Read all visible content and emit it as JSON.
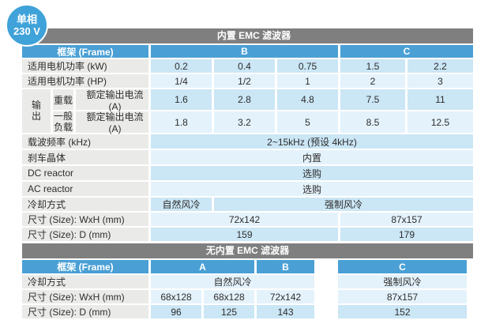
{
  "badge": {
    "line1": "单相",
    "line2": "230 V"
  },
  "colors": {
    "badge_bg": "#3fa2d9",
    "section_header_bg": "#7f7f7f",
    "table_header_bg": "#4aa0d5",
    "label_cell_bg": "#eaeae8",
    "row_blue": "#cbe6f5",
    "row_blue_light": "#e4f2fb"
  },
  "section1": {
    "title": "内置 EMC 滤波器",
    "frame": {
      "label": "框架 (Frame)",
      "col_b": "B",
      "col_c": "C"
    },
    "power_kw": {
      "label": "适用电机功率 (kW)",
      "values": [
        "0.2",
        "0.4",
        "0.75",
        "1.5",
        "2.2"
      ]
    },
    "power_hp": {
      "label": "适用电机功率 (HP)",
      "values": [
        "1/4",
        "1/2",
        "1",
        "2",
        "3"
      ]
    },
    "output": {
      "label": "输\n出",
      "heavy": {
        "label": "重载",
        "sub": "额定输出电流 (A)",
        "values": [
          "1.6",
          "2.8",
          "4.8",
          "7.5",
          "11"
        ]
      },
      "normal": {
        "label": "一般\n负载",
        "sub": "额定输出电流 (A)",
        "values": [
          "1.8",
          "3.2",
          "5",
          "8.5",
          "12.5"
        ]
      }
    },
    "carrier": {
      "label": "载波频率 (kHz)",
      "value": "2~15kHz (预设 4kHz)"
    },
    "brake": {
      "label": "刹车晶体",
      "value": "内置"
    },
    "dc_reactor": {
      "label": "DC reactor",
      "value": "选购"
    },
    "ac_reactor": {
      "label": "AC reactor",
      "value": "选购"
    },
    "cooling": {
      "label": "冷却方式",
      "natural": "自然风冷",
      "forced": "强制风冷"
    },
    "size_wxh": {
      "label": "尺寸 (Size): WxH (mm)",
      "b": "72x142",
      "c": "87x157"
    },
    "size_d": {
      "label": "尺寸 (Size): D (mm)",
      "b": "159",
      "c": "179"
    }
  },
  "section2": {
    "title": "无内置 EMC 滤波器",
    "frame": {
      "label": "框架 (Frame)",
      "col_a": "A",
      "col_b": "B",
      "col_c": "C"
    },
    "cooling": {
      "label": "冷却方式",
      "natural": "自然风冷",
      "forced": "强制风冷"
    },
    "size_wxh": {
      "label": "尺寸 (Size): WxH (mm)",
      "values": [
        "68x128",
        "68x128",
        "72x142",
        "87x157"
      ]
    },
    "size_d": {
      "label": "尺寸 (Size): D (mm)",
      "values": [
        "96",
        "125",
        "143",
        "152"
      ]
    }
  }
}
